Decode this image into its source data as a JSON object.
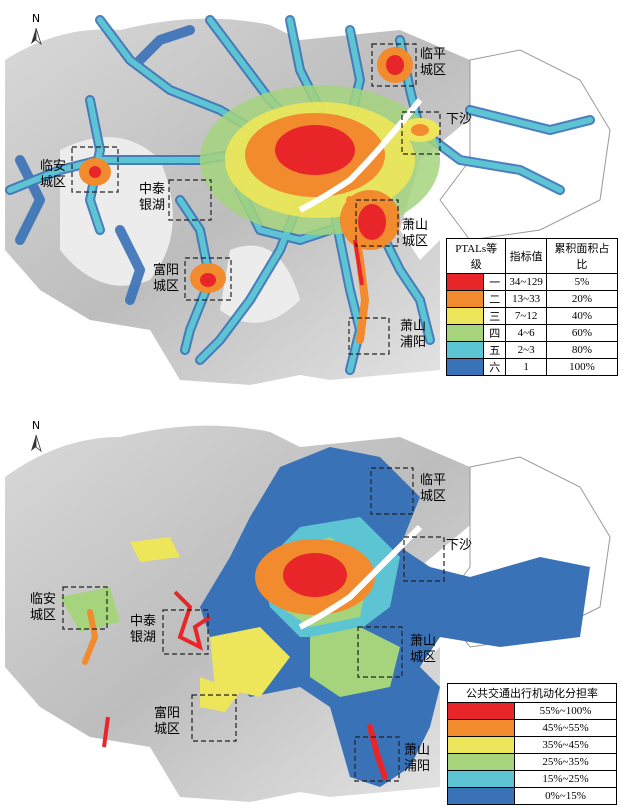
{
  "map1": {
    "north": "N",
    "places": [
      {
        "id": "linping",
        "line1": "临平",
        "line2": "城区"
      },
      {
        "id": "xiasha",
        "line1": "下沙",
        "line2": ""
      },
      {
        "id": "linan",
        "line1": "临安",
        "line2": "城区"
      },
      {
        "id": "zhongtai",
        "line1": "中泰",
        "line2": "银湖"
      },
      {
        "id": "xiaoshan",
        "line1": "萧山",
        "line2": "城区"
      },
      {
        "id": "fuyang",
        "line1": "富阳",
        "line2": "城区"
      },
      {
        "id": "puyang",
        "line1": "萧山",
        "line2": "浦阳"
      }
    ],
    "legend": {
      "headers": [
        "PTALs等级",
        "指标值",
        "累积面积占比"
      ],
      "rows": [
        {
          "color": "#e8262a",
          "level": "一",
          "value": "34~129",
          "share": "5%"
        },
        {
          "color": "#f28a2e",
          "level": "二",
          "value": "13~33",
          "share": "20%"
        },
        {
          "color": "#ede55a",
          "level": "三",
          "value": "7~12",
          "share": "40%"
        },
        {
          "color": "#a5d47d",
          "level": "四",
          "value": "4~6",
          "share": "60%"
        },
        {
          "color": "#5cc4d2",
          "level": "五",
          "value": "2~3",
          "share": "80%"
        },
        {
          "color": "#3a72b8",
          "level": "六",
          "value": "1",
          "share": "100%"
        }
      ]
    }
  },
  "map2": {
    "north": "N",
    "places": [
      {
        "id": "linping",
        "line1": "临平",
        "line2": "城区"
      },
      {
        "id": "xiasha",
        "line1": "下沙",
        "line2": ""
      },
      {
        "id": "linan",
        "line1": "临安",
        "line2": "城区"
      },
      {
        "id": "zhongtai",
        "line1": "中泰",
        "line2": "银湖"
      },
      {
        "id": "xiaoshan",
        "line1": "萧山",
        "line2": "城区"
      },
      {
        "id": "fuyang",
        "line1": "富阳",
        "line2": "城区"
      },
      {
        "id": "puyang",
        "line1": "萧山",
        "line2": "浦阳"
      }
    ],
    "legend": {
      "title": "公共交通出行机动化分担率",
      "rows": [
        {
          "color": "#e8262a",
          "range": "55%~100%"
        },
        {
          "color": "#f28a2e",
          "range": "45%~55%"
        },
        {
          "color": "#ede55a",
          "range": "35%~45%"
        },
        {
          "color": "#a5d47d",
          "range": "25%~35%"
        },
        {
          "color": "#5cc4d2",
          "range": "15%~25%"
        },
        {
          "color": "#3a72b8",
          "range": "0%~15%"
        }
      ]
    }
  }
}
